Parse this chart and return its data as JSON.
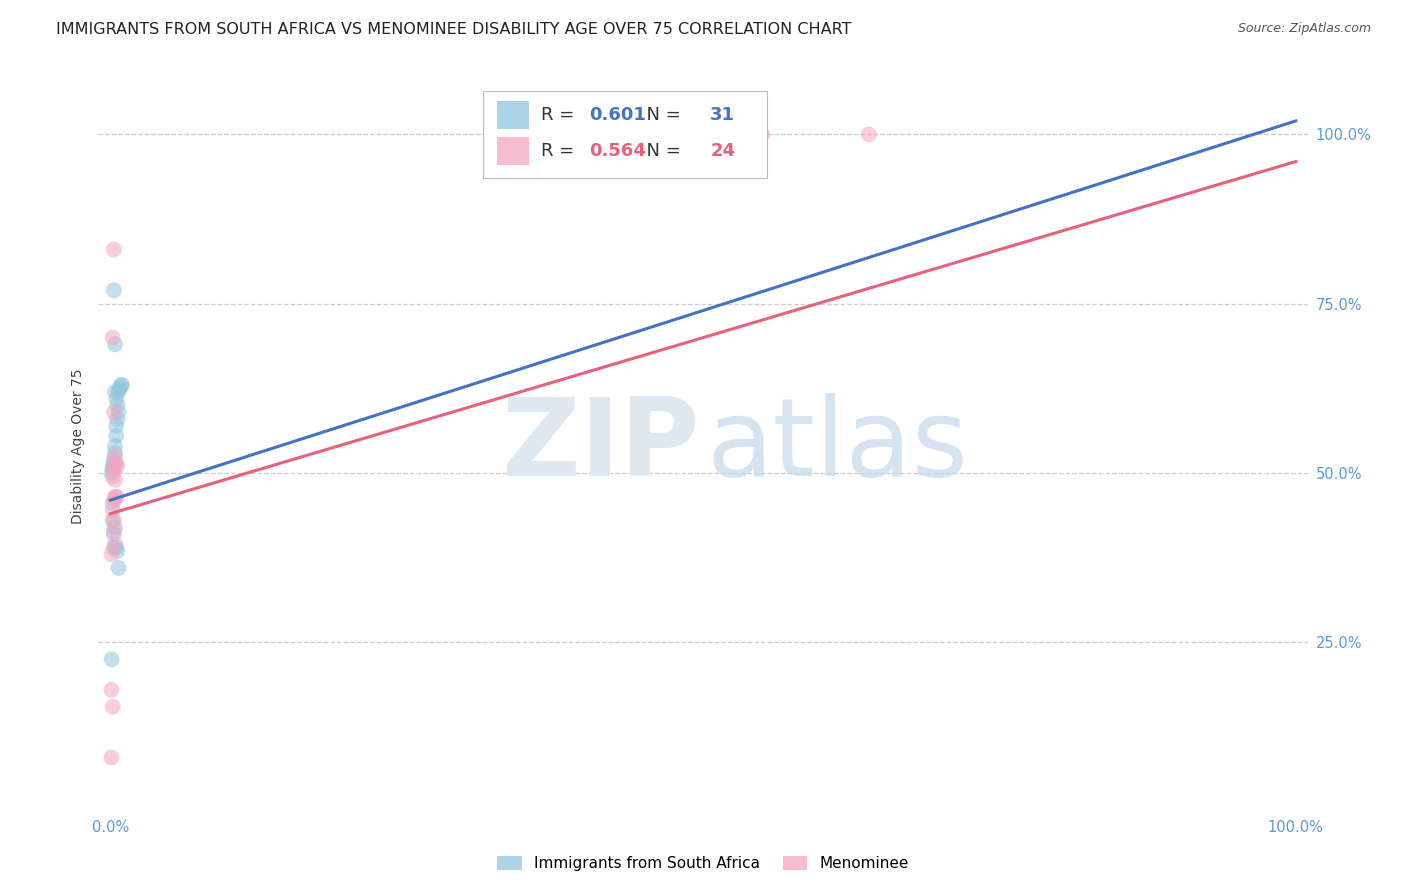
{
  "title": "IMMIGRANTS FROM SOUTH AFRICA VS MENOMINEE DISABILITY AGE OVER 75 CORRELATION CHART",
  "source": "Source: ZipAtlas.com",
  "ylabel": "Disability Age Over 75",
  "blue_R": 0.601,
  "blue_N": 31,
  "pink_R": 0.564,
  "pink_N": 24,
  "blue_color": "#92c5de",
  "pink_color": "#f4a6c0",
  "blue_line_color": "#4472c4",
  "pink_line_color": "#e8607a",
  "blue_scatter_x": [
    0.001,
    0.002,
    0.003,
    0.004,
    0.003,
    0.002,
    0.004,
    0.005,
    0.006,
    0.005,
    0.007,
    0.006,
    0.005,
    0.004,
    0.007,
    0.008,
    0.009,
    0.01,
    0.003,
    0.004,
    0.002,
    0.002,
    0.003,
    0.005,
    0.006,
    0.007,
    0.003,
    0.004,
    0.001,
    0.48,
    0.52
  ],
  "blue_scatter_y": [
    0.5,
    0.51,
    0.515,
    0.53,
    0.52,
    0.505,
    0.54,
    0.555,
    0.58,
    0.57,
    0.59,
    0.6,
    0.61,
    0.62,
    0.62,
    0.625,
    0.63,
    0.63,
    0.77,
    0.69,
    0.455,
    0.43,
    0.41,
    0.39,
    0.385,
    0.36,
    0.39,
    0.42,
    0.225,
    1.0,
    1.0
  ],
  "pink_scatter_x": [
    0.002,
    0.003,
    0.004,
    0.005,
    0.006,
    0.004,
    0.003,
    0.005,
    0.003,
    0.004,
    0.002,
    0.003,
    0.004,
    0.005,
    0.003,
    0.002,
    0.004,
    0.55,
    0.64,
    0.001,
    0.003,
    0.001,
    0.002,
    0.001
  ],
  "pink_scatter_y": [
    0.495,
    0.505,
    0.51,
    0.515,
    0.51,
    0.525,
    0.59,
    0.465,
    0.43,
    0.465,
    0.445,
    0.46,
    0.49,
    0.465,
    0.83,
    0.7,
    0.395,
    1.0,
    1.0,
    0.38,
    0.415,
    0.18,
    0.155,
    0.08
  ],
  "blue_line_x0": 0.0,
  "blue_line_x1": 1.0,
  "blue_line_y0": 0.46,
  "blue_line_y1": 1.02,
  "pink_line_x0": 0.0,
  "pink_line_x1": 1.0,
  "pink_line_y0": 0.44,
  "pink_line_y1": 0.96,
  "xlim_min": -0.01,
  "xlim_max": 1.01,
  "ylim_min": 0.0,
  "ylim_max": 1.08,
  "yticks": [
    0.25,
    0.5,
    0.75,
    1.0
  ],
  "ytick_labels": [
    "25.0%",
    "50.0%",
    "75.0%",
    "100.0%"
  ],
  "xticks": [
    0.0,
    1.0
  ],
  "xtick_labels": [
    "0.0%",
    "100.0%"
  ],
  "grid_color": "#cccccc",
  "tick_color": "#5b9bd5",
  "background_color": "#ffffff",
  "title_fontsize": 11.5,
  "axis_label_fontsize": 10,
  "tick_fontsize": 10.5,
  "bottom_legend_label_blue": "Immigrants from South Africa",
  "bottom_legend_label_pink": "Menominee"
}
